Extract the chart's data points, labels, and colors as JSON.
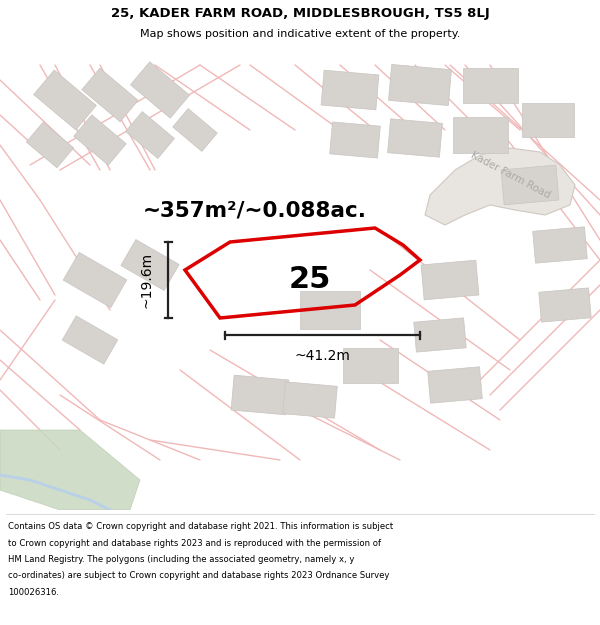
{
  "title_line1": "25, KADER FARM ROAD, MIDDLESBROUGH, TS5 8LJ",
  "title_line2": "Map shows position and indicative extent of the property.",
  "area_text": "~357m²/~0.088ac.",
  "width_label": "~41.2m",
  "height_label": "~19.6m",
  "plot_number": "25",
  "road_label": "Kader Farm Road",
  "footer_lines": [
    "Contains OS data © Crown copyright and database right 2021. This information is subject",
    "to Crown copyright and database rights 2023 and is reproduced with the permission of",
    "HM Land Registry. The polygons (including the associated geometry, namely x, y",
    "co-ordinates) are subject to Crown copyright and database rights 2023 Ordnance Survey",
    "100026316."
  ],
  "map_bg": "#ffffff",
  "plot_edge_color": "#dd0000",
  "road_pink": "#f0b8b8",
  "building_gray": "#d6d2ce",
  "building_edge": "#c8c4c0",
  "green_color": "#c8d8c0",
  "green_edge": "#b0ccb0",
  "water_color": "#d0e0f0",
  "road_band_color": "#e8e0d8",
  "dim_color": "#222222"
}
